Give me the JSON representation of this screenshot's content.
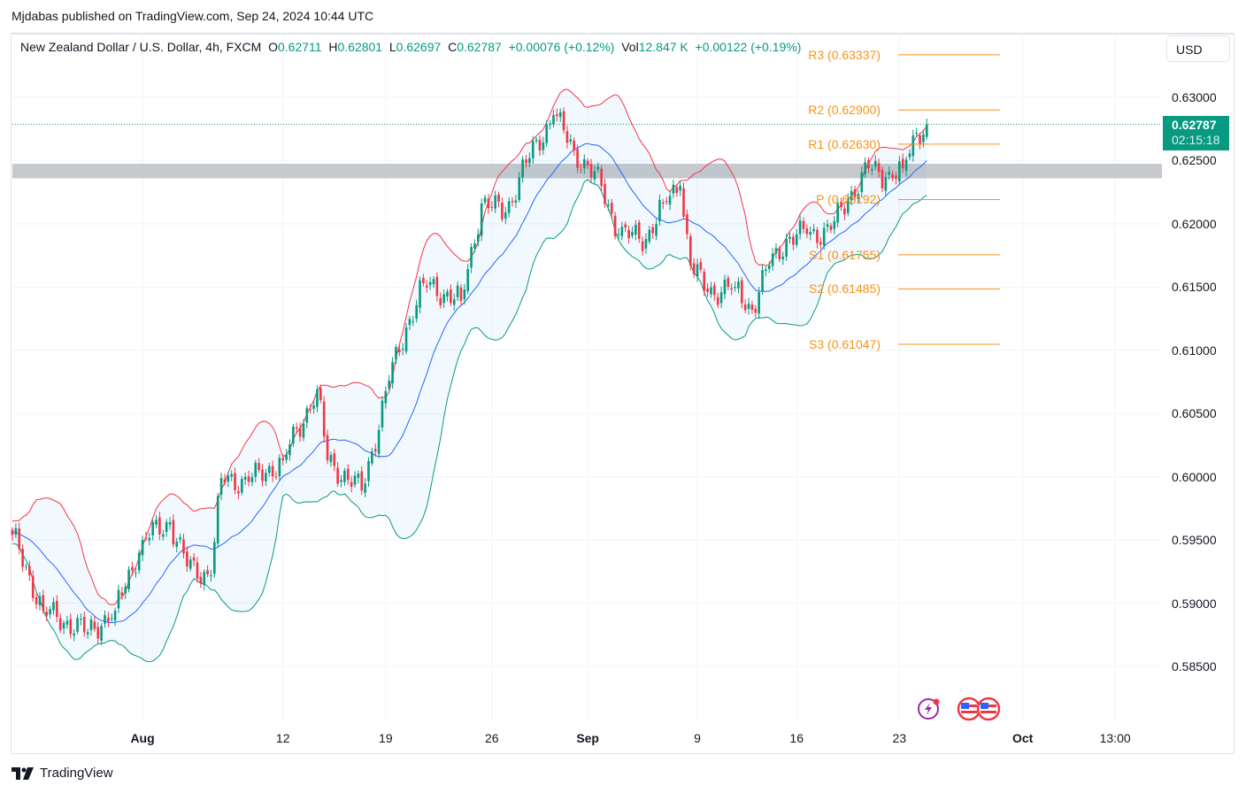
{
  "publisher_line": "Mjdabas published on TradingView.com, Sep 24, 2024 10:44 UTC",
  "legend": {
    "symbol": "New Zealand Dollar / U.S. Dollar, 4h, FXCM",
    "o_label": "O",
    "o": "0.62711",
    "h_label": "H",
    "h": "0.62801",
    "l_label": "L",
    "l": "0.62697",
    "c_label": "C",
    "c": "0.62787",
    "change": "+0.00076 (+0.12%)",
    "vol_label": "Vol",
    "vol": "12.847 K",
    "vol_change": "+0.00122 (+0.19%)"
  },
  "currency_button": "USD",
  "last_price": {
    "value": "0.62787",
    "countdown": "02:15:18"
  },
  "brand": "TradingView",
  "colors": {
    "up": "#089981",
    "down": "#f23645",
    "bb_mid": "#2962ff",
    "bb_upper": "#f23645",
    "bb_lower": "#089981",
    "pivot": "#f7931a",
    "zone": "#c8c9cd"
  },
  "chart_data": {
    "type": "candlestick",
    "title": "New Zealand Dollar / U.S. Dollar, 4h, FXCM",
    "ylim": [
      0.5815,
      0.6345
    ],
    "y_ticks": [
      "0.63000",
      "0.62500",
      "0.62000",
      "0.61500",
      "0.61000",
      "0.60500",
      "0.60000",
      "0.59500",
      "0.59000",
      "0.58500"
    ],
    "x_ticks": [
      {
        "label": "Aug",
        "bar": 38,
        "bold": true
      },
      {
        "label": "12",
        "bar": 79,
        "bold": false
      },
      {
        "label": "19",
        "bar": 109,
        "bold": false
      },
      {
        "label": "26",
        "bar": 140,
        "bold": false
      },
      {
        "label": "Sep",
        "bar": 168,
        "bold": true
      },
      {
        "label": "9",
        "bar": 200,
        "bold": false
      },
      {
        "label": "16",
        "bar": 229,
        "bold": false
      },
      {
        "label": "23",
        "bar": 259,
        "bold": false
      },
      {
        "label": "Oct",
        "bar": 295,
        "bold": true
      },
      {
        "label": "13:00",
        "bar": 322,
        "bold": false
      }
    ],
    "close_anchors_bar_price": [
      [
        0,
        0.5954
      ],
      [
        9,
        0.5894
      ],
      [
        22,
        0.5877
      ],
      [
        30,
        0.5894
      ],
      [
        38,
        0.595
      ],
      [
        46,
        0.5964
      ],
      [
        51,
        0.5929
      ],
      [
        58,
        0.5922
      ],
      [
        61,
        0.5999
      ],
      [
        69,
        0.5996
      ],
      [
        79,
        0.6013
      ],
      [
        89,
        0.6069
      ],
      [
        92,
        0.6013
      ],
      [
        102,
        0.5989
      ],
      [
        105,
        0.602
      ],
      [
        110,
        0.6076
      ],
      [
        115,
        0.6118
      ],
      [
        120,
        0.6153
      ],
      [
        131,
        0.6139
      ],
      [
        137,
        0.6216
      ],
      [
        144,
        0.6209
      ],
      [
        150,
        0.6248
      ],
      [
        158,
        0.6286
      ],
      [
        164,
        0.6258
      ],
      [
        172,
        0.623
      ],
      [
        177,
        0.6192
      ],
      [
        185,
        0.6188
      ],
      [
        190,
        0.6216
      ],
      [
        195,
        0.623
      ],
      [
        198,
        0.6167
      ],
      [
        203,
        0.6146
      ],
      [
        211,
        0.615
      ],
      [
        216,
        0.6132
      ],
      [
        221,
        0.6167
      ],
      [
        226,
        0.6188
      ],
      [
        232,
        0.6192
      ],
      [
        239,
        0.6195
      ],
      [
        244,
        0.622
      ],
      [
        250,
        0.6244
      ],
      [
        255,
        0.6237
      ],
      [
        260,
        0.6244
      ],
      [
        264,
        0.6272
      ],
      [
        267,
        0.62787
      ]
    ],
    "indicators": {
      "bollinger_bands": {
        "period": 20,
        "stddev": 2
      }
    },
    "pivots": [
      {
        "name": "R3",
        "value": "0.63337"
      },
      {
        "name": "R2",
        "value": "0.62900"
      },
      {
        "name": "R1",
        "value": "0.62630"
      },
      {
        "name": "P",
        "value": "0.62192"
      },
      {
        "name": "S1",
        "value": "0.61755"
      },
      {
        "name": "S2",
        "value": "0.61485"
      },
      {
        "name": "S3",
        "value": "0.61047"
      }
    ],
    "zone": [
      0.6236,
      0.62475
    ],
    "last_close": 0.62787
  }
}
